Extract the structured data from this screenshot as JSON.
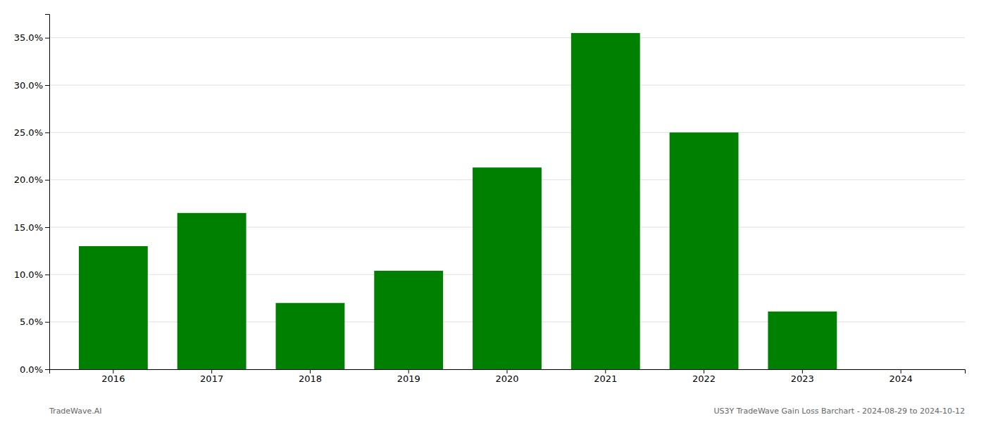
{
  "chart_data": {
    "type": "bar",
    "categories": [
      "2016",
      "2017",
      "2018",
      "2019",
      "2020",
      "2021",
      "2022",
      "2023",
      "2024"
    ],
    "values": [
      0.13,
      0.165,
      0.07,
      0.104,
      0.213,
      0.355,
      0.25,
      0.061,
      0.0
    ],
    "color": "#008000",
    "ylim": [
      0,
      0.375
    ],
    "yticks": [
      {
        "value": 0.0,
        "label": "0.0%"
      },
      {
        "value": 0.05,
        "label": "5.0%"
      },
      {
        "value": 0.1,
        "label": "10.0%"
      },
      {
        "value": 0.15,
        "label": "15.0%"
      },
      {
        "value": 0.2,
        "label": "20.0%"
      },
      {
        "value": 0.25,
        "label": "25.0%"
      },
      {
        "value": 0.3,
        "label": "30.0%"
      },
      {
        "value": 0.35,
        "label": "35.0%"
      }
    ],
    "grid": true,
    "annotations": [
      "TradeWave.AI",
      "US3Y TradeWave Gain Loss Barchart - 2024-08-29 to 2024-10-12"
    ]
  }
}
